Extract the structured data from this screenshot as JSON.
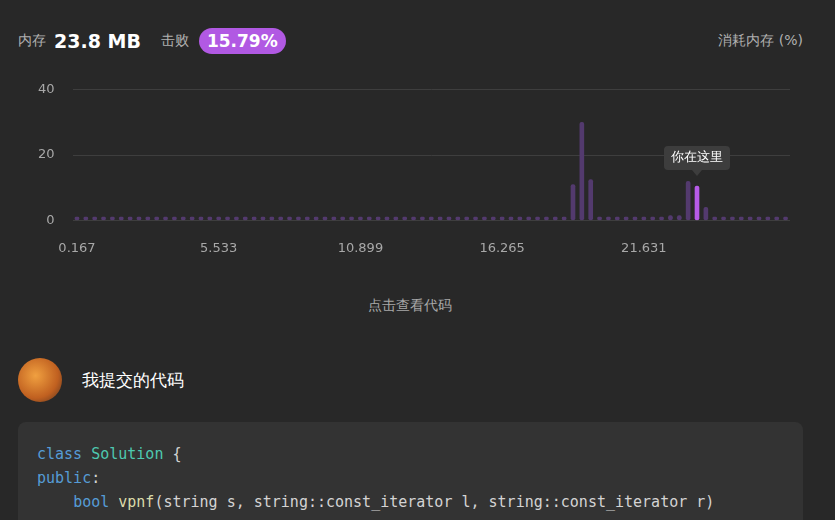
{
  "header": {
    "memory_label": "内存",
    "memory_value": "23.8 MB",
    "beat_label": "击败",
    "beat_value": "15.79%",
    "metric_label": "消耗内存 (%)"
  },
  "chart_data": {
    "type": "bar",
    "categories": [
      "0.167",
      null,
      null,
      null,
      null,
      null,
      null,
      null,
      null,
      null,
      null,
      null,
      null,
      null,
      null,
      null,
      "5.533",
      null,
      null,
      null,
      null,
      null,
      null,
      null,
      null,
      null,
      null,
      null,
      null,
      null,
      null,
      null,
      "10.899",
      null,
      null,
      null,
      null,
      null,
      null,
      null,
      null,
      null,
      null,
      null,
      null,
      null,
      null,
      null,
      "16.265",
      null,
      null,
      null,
      null,
      null,
      null,
      null,
      null,
      null,
      null,
      null,
      null,
      null,
      null,
      null,
      "21.631",
      null,
      null,
      null,
      null,
      null,
      null,
      null,
      null,
      null,
      null,
      null,
      null,
      null,
      null,
      null,
      null
    ],
    "values": [
      1,
      1,
      1,
      1,
      1,
      1,
      1,
      1,
      1,
      1,
      1,
      1,
      1,
      1,
      1,
      1,
      1,
      1,
      1,
      1,
      1,
      1,
      1,
      1,
      1,
      1,
      1,
      1,
      1,
      1,
      1,
      1,
      1,
      1,
      1,
      1,
      1,
      1,
      1,
      1,
      1,
      1,
      1,
      1,
      1,
      1,
      1,
      1,
      1,
      1,
      1,
      1,
      1,
      1,
      1,
      1,
      11,
      30,
      12.5,
      1,
      1,
      1,
      1,
      1,
      1,
      1,
      1,
      1.5,
      1.5,
      12,
      10.5,
      4,
      1,
      1,
      1,
      1,
      1,
      1,
      1,
      1,
      1
    ],
    "colors": [
      "#533a6e",
      "#533a6e",
      "#533a6e",
      "#533a6e",
      "#533a6e",
      "#533a6e",
      "#533a6e",
      "#533a6e",
      "#533a6e",
      "#533a6e",
      "#533a6e",
      "#533a6e",
      "#533a6e",
      "#533a6e",
      "#533a6e",
      "#533a6e",
      "#533a6e",
      "#533a6e",
      "#533a6e",
      "#533a6e",
      "#533a6e",
      "#533a6e",
      "#533a6e",
      "#533a6e",
      "#533a6e",
      "#533a6e",
      "#533a6e",
      "#533a6e",
      "#533a6e",
      "#533a6e",
      "#533a6e",
      "#533a6e",
      "#533a6e",
      "#533a6e",
      "#533a6e",
      "#533a6e",
      "#533a6e",
      "#533a6e",
      "#533a6e",
      "#533a6e",
      "#533a6e",
      "#533a6e",
      "#533a6e",
      "#533a6e",
      "#533a6e",
      "#533a6e",
      "#533a6e",
      "#533a6e",
      "#533a6e",
      "#533a6e",
      "#533a6e",
      "#533a6e",
      "#533a6e",
      "#533a6e",
      "#533a6e",
      "#533a6e",
      "#533a6e",
      "#533a6e",
      "#533a6e",
      "#533a6e",
      "#533a6e",
      "#533a6e",
      "#533a6e",
      "#533a6e",
      "#533a6e",
      "#533a6e",
      "#533a6e",
      "#533a6e",
      "#533a6e",
      "#533a6e",
      "#b65be8",
      "#533a6e",
      "#533a6e",
      "#533a6e",
      "#533a6e",
      "#533a6e",
      "#533a6e",
      "#533a6e",
      "#533a6e",
      "#533a6e",
      "#533a6e"
    ],
    "ylim": [
      0,
      40
    ],
    "yticks": [
      0,
      20,
      40
    ],
    "grid": true,
    "annotation": {
      "text": "你在这里",
      "index": 70
    }
  },
  "view_code": "点击查看代码",
  "submission": {
    "title": "我提交的代码",
    "code": [
      [
        {
          "text": "class",
          "kind": "keyword"
        },
        {
          "text": " ",
          "kind": "plain"
        },
        {
          "text": "Solution",
          "kind": "type"
        },
        {
          "text": " {",
          "kind": "plain"
        }
      ],
      [
        {
          "text": "public",
          "kind": "keyword"
        },
        {
          "text": ":",
          "kind": "plain"
        }
      ],
      [
        {
          "text": "    ",
          "kind": "plain"
        },
        {
          "text": "bool",
          "kind": "keyword"
        },
        {
          "text": " ",
          "kind": "plain"
        },
        {
          "text": "vpnf",
          "kind": "func"
        },
        {
          "text": "(string s, string::const_iterator l, string::const_iterator r)",
          "kind": "plain"
        }
      ]
    ]
  }
}
